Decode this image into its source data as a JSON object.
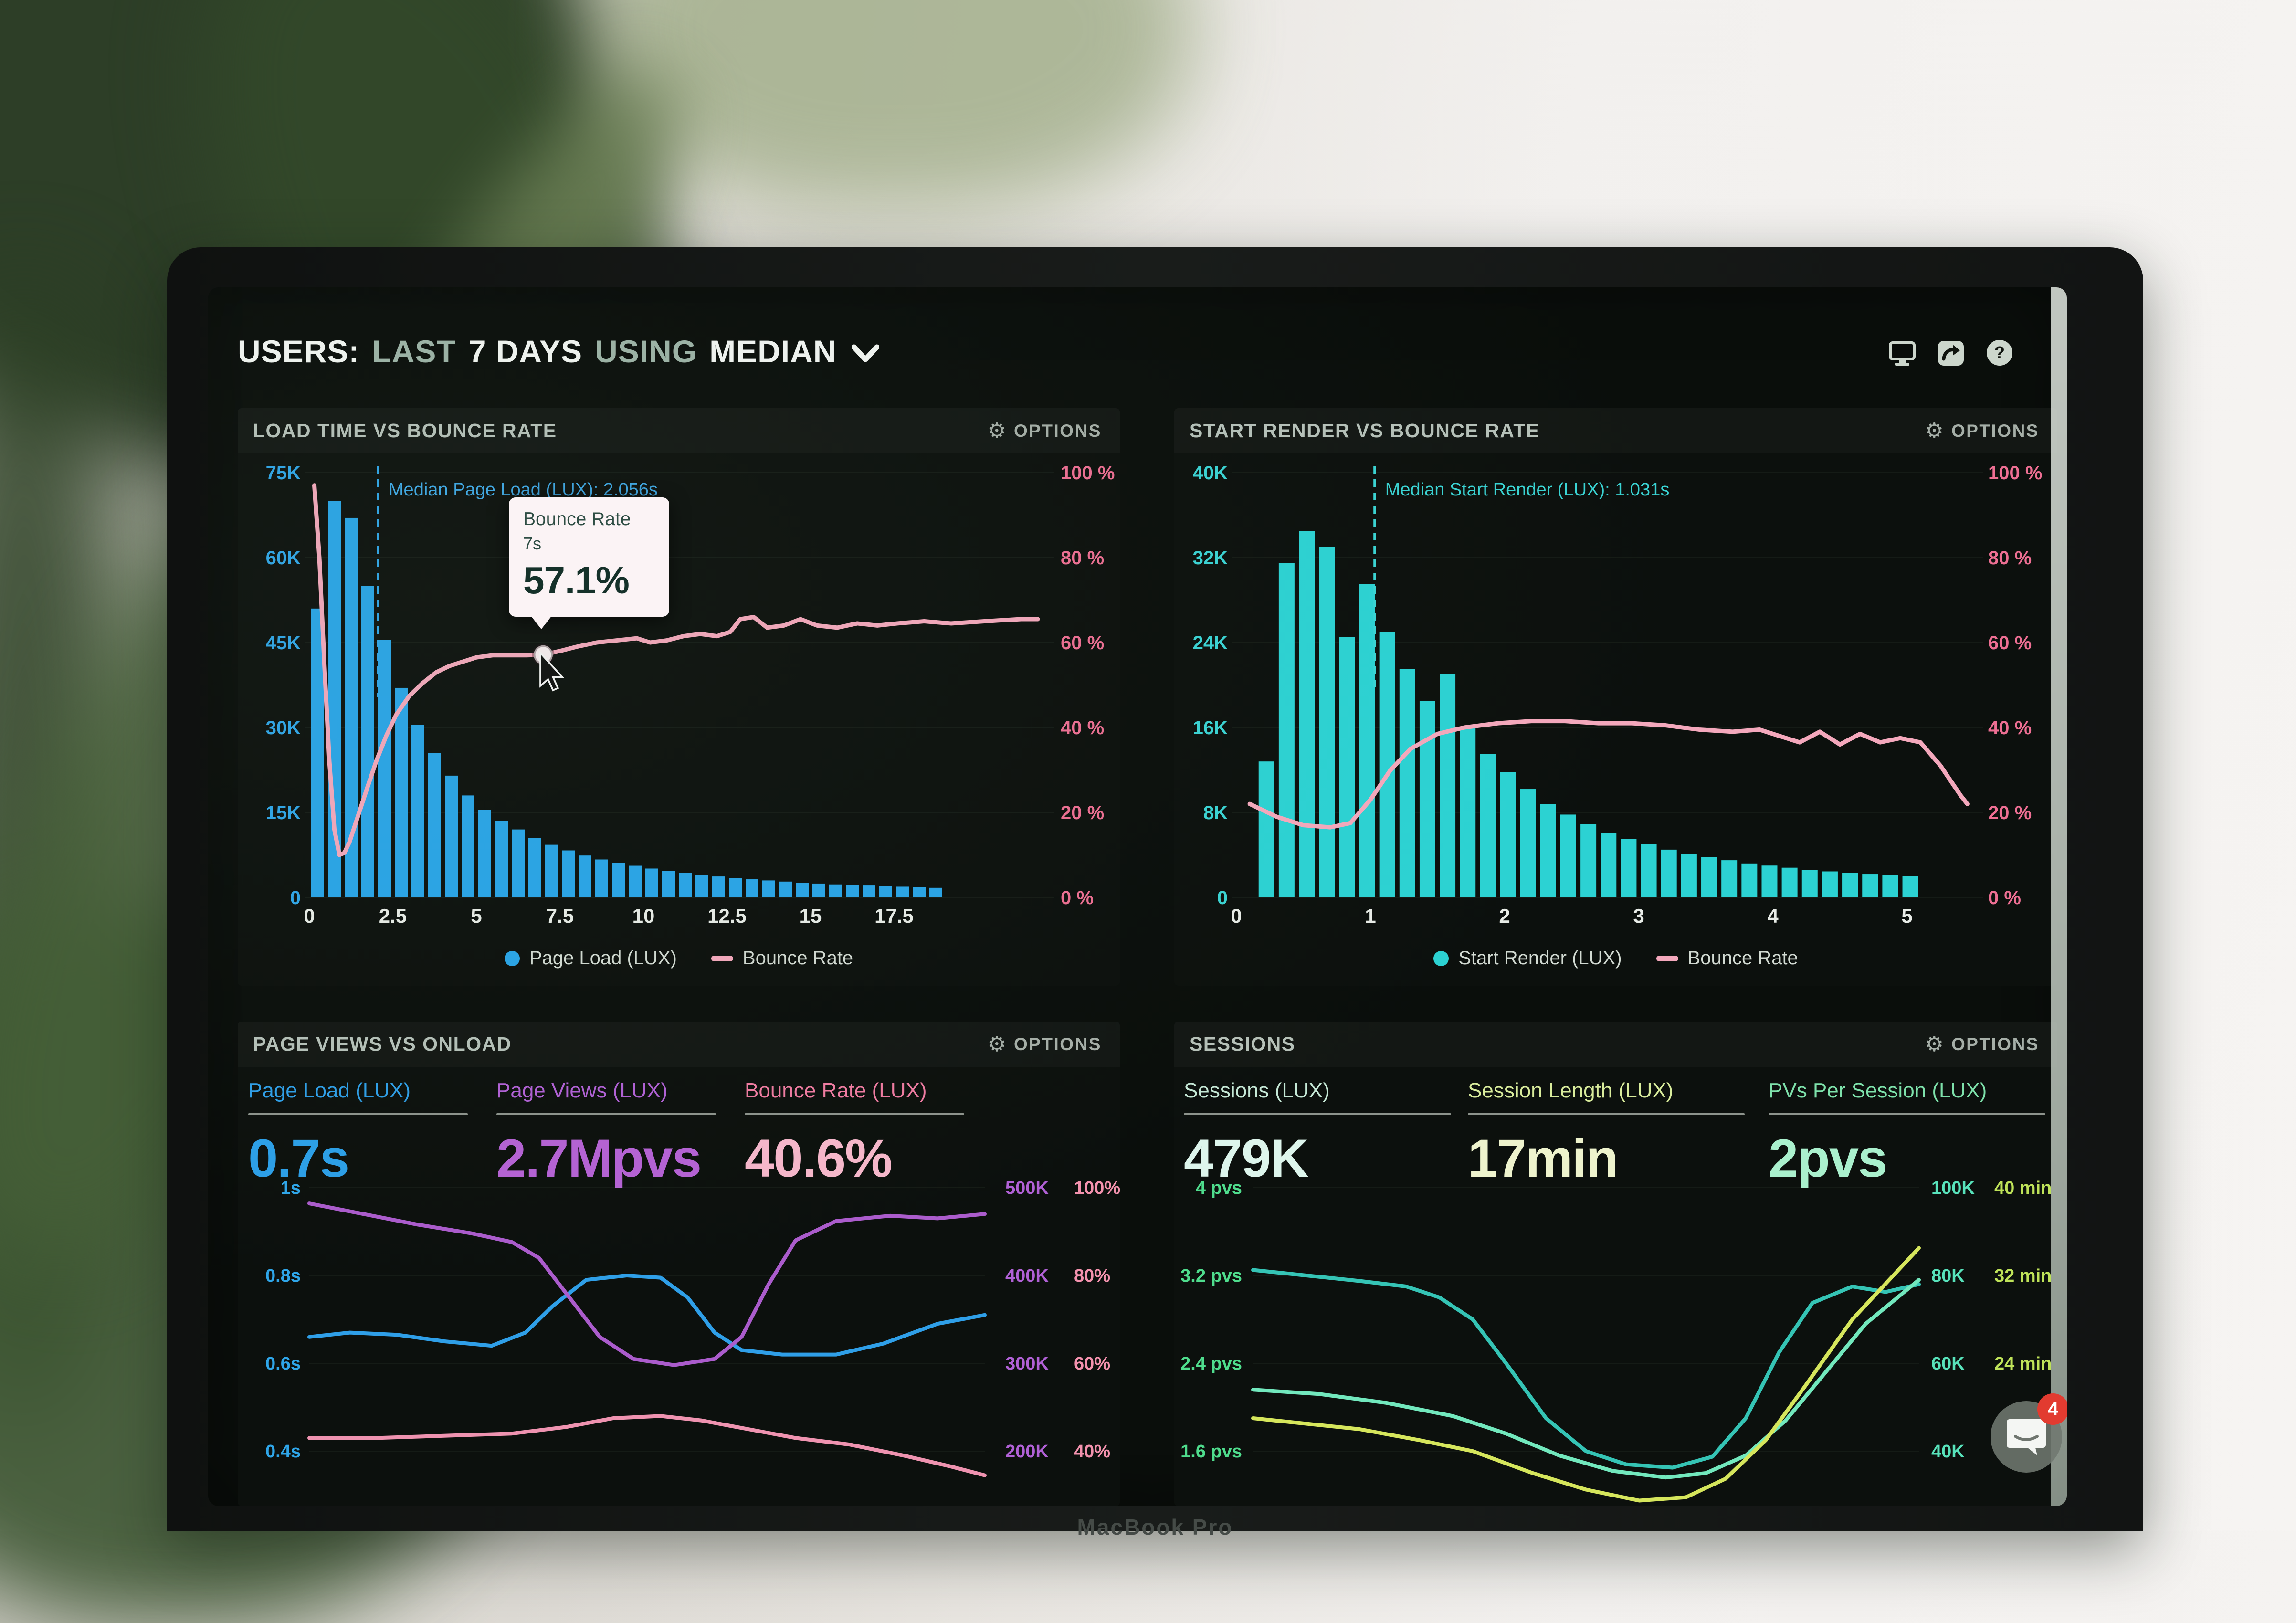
{
  "header": {
    "title_parts": [
      "USERS:",
      "LAST",
      "7 DAYS",
      "USING",
      "MEDIAN"
    ],
    "icons": [
      "display-icon",
      "share-icon",
      "help-icon"
    ]
  },
  "ui": {
    "options_label": "OPTIONS"
  },
  "panels": {
    "load_time": {
      "title": "LOAD TIME VS BOUNCE RATE"
    },
    "start_render": {
      "title": "START RENDER VS BOUNCE RATE"
    },
    "page_views": {
      "title": "PAGE VIEWS VS ONLOAD",
      "metrics": [
        {
          "label": "Page Load (LUX)",
          "value": "0.7s",
          "label_color": "#2f9fe8",
          "value_color": "#2c9fe8"
        },
        {
          "label": "Page Views (LUX)",
          "value": "2.7Mpvs",
          "label_color": "#b161d6",
          "value_color": "#b562d4"
        },
        {
          "label": "Bounce Rate (LUX)",
          "value": "40.6%",
          "label_color": "#f07ca2",
          "value_color": "#f6b7cb"
        }
      ]
    },
    "sessions": {
      "title": "SESSIONS",
      "metrics": [
        {
          "label": "Sessions (LUX)",
          "value": "479K",
          "label_color": "#c5e8d6",
          "value_color": "#ddf5ec"
        },
        {
          "label": "Session Length (LUX)",
          "value": "17min",
          "label_color": "#d9ec9c",
          "value_color": "#eef3cd"
        },
        {
          "label": "PVs Per Session (LUX)",
          "value": "2pvs",
          "label_color": "#7ee2ab",
          "value_color": "#aaf0cd"
        }
      ]
    }
  },
  "chat": {
    "badge": "4"
  },
  "device": {
    "label": "MacBook Pro"
  },
  "chart_data": [
    {
      "id": "load-time-vs-bounce-rate",
      "type": "bar+line",
      "title": "LOAD TIME VS BOUNCE RATE",
      "x_ticks": [
        0,
        2.5,
        5,
        7.5,
        10,
        12.5,
        15,
        17.5
      ],
      "x_unit": "s",
      "left_axis": {
        "tick_labels": [
          "75K",
          "60K",
          "45K",
          "30K",
          "15K",
          "0"
        ],
        "max_k": 75,
        "color": "#2fa6e9"
      },
      "right_axis": {
        "tick_labels": [
          "100 %",
          "80 %",
          "60 %",
          "40 %",
          "20 %",
          "0 %"
        ],
        "max": 100,
        "color": "#ee6f93"
      },
      "bars": {
        "name": "Page Load (LUX)",
        "color": "#29a5e8",
        "bin_start": 0.25,
        "bin_width": 0.5,
        "values_k": [
          51,
          70,
          67,
          55,
          45.5,
          37,
          30.5,
          25.5,
          21.5,
          18,
          15.5,
          13.5,
          12,
          10.5,
          9.3,
          8.3,
          7.4,
          6.7,
          6.1,
          5.6,
          5.1,
          4.7,
          4.3,
          4,
          3.7,
          3.4,
          3.2,
          3,
          2.8,
          2.6,
          2.45,
          2.3,
          2.2,
          2.1,
          2,
          1.9,
          1.8,
          1.7
        ]
      },
      "line": {
        "name": "Bounce Rate",
        "color": "#f4a8bc",
        "points_pct": [
          [
            0.15,
            97
          ],
          [
            0.3,
            80
          ],
          [
            0.45,
            55
          ],
          [
            0.6,
            32
          ],
          [
            0.75,
            16
          ],
          [
            0.9,
            10
          ],
          [
            1.05,
            10.5
          ],
          [
            1.2,
            13
          ],
          [
            1.45,
            19
          ],
          [
            1.7,
            25
          ],
          [
            2.0,
            32
          ],
          [
            2.3,
            38
          ],
          [
            2.6,
            43
          ],
          [
            3.0,
            47.5
          ],
          [
            3.4,
            50.5
          ],
          [
            3.8,
            53
          ],
          [
            4.2,
            54.5
          ],
          [
            4.6,
            55.5
          ],
          [
            5.0,
            56.5
          ],
          [
            5.5,
            57
          ],
          [
            6.0,
            57
          ],
          [
            6.5,
            57
          ],
          [
            7.0,
            57.1
          ],
          [
            7.5,
            58
          ],
          [
            8.0,
            59
          ],
          [
            8.6,
            60
          ],
          [
            9.2,
            60.5
          ],
          [
            9.8,
            61
          ],
          [
            10.2,
            60
          ],
          [
            10.7,
            60.5
          ],
          [
            11.2,
            61.5
          ],
          [
            11.7,
            62
          ],
          [
            12.2,
            61.5
          ],
          [
            12.6,
            62.5
          ],
          [
            12.9,
            65.5
          ],
          [
            13.3,
            66
          ],
          [
            13.7,
            63.5
          ],
          [
            14.2,
            64
          ],
          [
            14.7,
            65.5
          ],
          [
            15.2,
            64
          ],
          [
            15.8,
            63.5
          ],
          [
            16.4,
            64.5
          ],
          [
            17.0,
            64
          ],
          [
            17.6,
            64.5
          ],
          [
            18.4,
            65
          ],
          [
            19.2,
            64.5
          ],
          [
            20.2,
            65
          ],
          [
            21.3,
            65.5
          ],
          [
            21.8,
            65.5
          ]
        ]
      },
      "median": {
        "label": "Median Page Load (LUX): 2.056s",
        "value": 2.056
      },
      "tooltip": {
        "series": "Bounce Rate",
        "x_label": "7s",
        "value_label": "57.1%",
        "at": [
          7,
          57.1
        ]
      },
      "legend": [
        {
          "swatch": "dot",
          "color": "#29a5e8",
          "label": "Page Load (LUX)"
        },
        {
          "swatch": "dash",
          "color": "#f4a8bc",
          "label": "Bounce Rate"
        }
      ]
    },
    {
      "id": "start-render-vs-bounce-rate",
      "type": "bar+line",
      "title": "START RENDER VS BOUNCE RATE",
      "x_ticks": [
        0,
        1,
        2,
        3,
        4,
        5
      ],
      "x_unit": "s",
      "left_axis": {
        "tick_labels": [
          "40K",
          "32K",
          "24K",
          "16K",
          "8K",
          "0"
        ],
        "max_k": 40,
        "color": "#3ad4d4"
      },
      "right_axis": {
        "tick_labels": [
          "100 %",
          "80 %",
          "60 %",
          "40 %",
          "20 %",
          "0 %"
        ],
        "max": 100,
        "color": "#ee6f93"
      },
      "bars": {
        "name": "Start Render (LUX)",
        "color": "#2cd2d3",
        "bin_start": 0.225,
        "bin_width": 0.15,
        "values_k": [
          12.8,
          31.5,
          34.5,
          33,
          24.5,
          29.5,
          25,
          21.5,
          18.5,
          21,
          16,
          13.5,
          11.8,
          10.2,
          8.8,
          7.8,
          6.9,
          6.1,
          5.5,
          5.0,
          4.5,
          4.1,
          3.8,
          3.5,
          3.2,
          3.0,
          2.8,
          2.6,
          2.45,
          2.3,
          2.2,
          2.1,
          2.0
        ]
      },
      "line": {
        "name": "Bounce Rate",
        "color": "#f4a8bc",
        "points_pct": [
          [
            0.1,
            22
          ],
          [
            0.3,
            19
          ],
          [
            0.5,
            17
          ],
          [
            0.7,
            16.5
          ],
          [
            0.85,
            17.5
          ],
          [
            1.0,
            23
          ],
          [
            1.15,
            30
          ],
          [
            1.3,
            35
          ],
          [
            1.5,
            38.5
          ],
          [
            1.7,
            40
          ],
          [
            1.95,
            41
          ],
          [
            2.2,
            41.5
          ],
          [
            2.45,
            41.5
          ],
          [
            2.7,
            41
          ],
          [
            2.95,
            41
          ],
          [
            3.2,
            40.5
          ],
          [
            3.45,
            39.5
          ],
          [
            3.7,
            39
          ],
          [
            3.9,
            39.5
          ],
          [
            4.05,
            38
          ],
          [
            4.2,
            36.5
          ],
          [
            4.35,
            39
          ],
          [
            4.5,
            36
          ],
          [
            4.65,
            38.5
          ],
          [
            4.8,
            36.5
          ],
          [
            4.95,
            37.5
          ],
          [
            5.1,
            36.5
          ],
          [
            5.25,
            31
          ],
          [
            5.4,
            24
          ],
          [
            5.45,
            22
          ]
        ]
      },
      "median": {
        "label": "Median Start Render (LUX): 1.031s",
        "value": 1.031
      },
      "legend": [
        {
          "swatch": "dot",
          "color": "#2cd2d3",
          "label": "Start Render (LUX)"
        },
        {
          "swatch": "dash",
          "color": "#f4a8bc",
          "label": "Bounce Rate"
        }
      ]
    },
    {
      "id": "page-views-vs-onload",
      "type": "line",
      "title": "PAGE VIEWS VS ONLOAD",
      "left_axis": {
        "tick_labels": [
          "1s",
          "0.8s",
          "0.6s",
          "0.4s"
        ],
        "top": 1,
        "step": 0.2,
        "color": "#2fa6e9"
      },
      "right_axis_cols": [
        {
          "tick_labels": [
            "500K",
            "400K",
            "300K",
            "200K"
          ],
          "top": 500,
          "step": 100,
          "color": "#b161d6"
        },
        {
          "tick_labels": [
            "100%",
            "80%",
            "60%",
            "40%"
          ],
          "top": 100,
          "step": 20,
          "color": "#f492ae"
        }
      ],
      "series": [
        {
          "name": "Page Load (LUX)",
          "axis": "left",
          "color": "#2f9fe8",
          "points": [
            [
              0,
              0.66
            ],
            [
              0.06,
              0.67
            ],
            [
              0.13,
              0.665
            ],
            [
              0.2,
              0.65
            ],
            [
              0.27,
              0.64
            ],
            [
              0.32,
              0.67
            ],
            [
              0.36,
              0.73
            ],
            [
              0.41,
              0.79
            ],
            [
              0.47,
              0.8
            ],
            [
              0.52,
              0.795
            ],
            [
              0.56,
              0.75
            ],
            [
              0.6,
              0.67
            ],
            [
              0.64,
              0.63
            ],
            [
              0.7,
              0.62
            ],
            [
              0.78,
              0.62
            ],
            [
              0.85,
              0.645
            ],
            [
              0.93,
              0.69
            ],
            [
              1,
              0.71
            ]
          ]
        },
        {
          "name": "Page Views (LUX)",
          "axis": "right0",
          "color": "#ab5ccc",
          "points": [
            [
              0,
              482
            ],
            [
              0.08,
              470
            ],
            [
              0.16,
              458
            ],
            [
              0.24,
              448
            ],
            [
              0.3,
              438
            ],
            [
              0.34,
              420
            ],
            [
              0.38,
              380
            ],
            [
              0.43,
              330
            ],
            [
              0.48,
              305
            ],
            [
              0.54,
              298
            ],
            [
              0.6,
              305
            ],
            [
              0.64,
              330
            ],
            [
              0.68,
              390
            ],
            [
              0.72,
              440
            ],
            [
              0.78,
              462
            ],
            [
              0.86,
              468
            ],
            [
              0.93,
              465
            ],
            [
              1,
              470
            ]
          ]
        },
        {
          "name": "Bounce Rate (LUX)",
          "axis": "right1",
          "color": "#ef93b0",
          "points": [
            [
              0,
              43
            ],
            [
              0.1,
              43
            ],
            [
              0.2,
              43.5
            ],
            [
              0.3,
              44
            ],
            [
              0.38,
              45.5
            ],
            [
              0.45,
              47.5
            ],
            [
              0.52,
              48
            ],
            [
              0.58,
              47
            ],
            [
              0.65,
              45
            ],
            [
              0.72,
              43
            ],
            [
              0.8,
              41.5
            ],
            [
              0.88,
              39
            ],
            [
              0.95,
              36.5
            ],
            [
              1,
              34.5
            ]
          ]
        }
      ]
    },
    {
      "id": "sessions",
      "type": "line",
      "title": "SESSIONS",
      "left_axis": {
        "tick_labels": [
          "4 pvs",
          "3.2 pvs",
          "2.4 pvs",
          "1.6 pvs"
        ],
        "top": 4,
        "step": 0.8,
        "color": "#4fdd8d"
      },
      "right_axis_cols": [
        {
          "tick_labels": [
            "100K",
            "80K",
            "60K",
            "40K"
          ],
          "top": 100,
          "step": 20,
          "color": "#58e3bb"
        },
        {
          "tick_labels": [
            "40 min",
            "32 min",
            "24 min",
            ""
          ],
          "top": 40,
          "step": 8,
          "color": "#bfe359"
        }
      ],
      "series": [
        {
          "name": "PVs Per Session (LUX)",
          "axis": "left",
          "color": "#35c4b5",
          "points": [
            [
              0,
              3.25
            ],
            [
              0.08,
              3.2
            ],
            [
              0.16,
              3.15
            ],
            [
              0.23,
              3.1
            ],
            [
              0.28,
              3.0
            ],
            [
              0.33,
              2.8
            ],
            [
              0.38,
              2.4
            ],
            [
              0.44,
              1.9
            ],
            [
              0.5,
              1.6
            ],
            [
              0.56,
              1.48
            ],
            [
              0.63,
              1.45
            ],
            [
              0.69,
              1.55
            ],
            [
              0.74,
              1.9
            ],
            [
              0.79,
              2.5
            ],
            [
              0.84,
              2.95
            ],
            [
              0.9,
              3.1
            ],
            [
              0.95,
              3.05
            ],
            [
              1,
              3.12
            ]
          ]
        },
        {
          "name": "Sessions (LUX)",
          "axis": "right0",
          "color": "#72e8bd",
          "points": [
            [
              0,
              54
            ],
            [
              0.1,
              53
            ],
            [
              0.2,
              51
            ],
            [
              0.3,
              48
            ],
            [
              0.38,
              44
            ],
            [
              0.46,
              39
            ],
            [
              0.54,
              35.5
            ],
            [
              0.62,
              34
            ],
            [
              0.68,
              35
            ],
            [
              0.74,
              39
            ],
            [
              0.8,
              47
            ],
            [
              0.86,
              58
            ],
            [
              0.92,
              69
            ],
            [
              1,
              79
            ]
          ]
        },
        {
          "name": "Session Length (LUX)",
          "axis": "right1",
          "color": "#d6e65c",
          "points": [
            [
              0,
              19
            ],
            [
              0.08,
              18.5
            ],
            [
              0.16,
              18
            ],
            [
              0.25,
              17
            ],
            [
              0.33,
              16
            ],
            [
              0.42,
              14
            ],
            [
              0.5,
              12.5
            ],
            [
              0.58,
              11.5
            ],
            [
              0.65,
              11.8
            ],
            [
              0.71,
              13.5
            ],
            [
              0.77,
              17
            ],
            [
              0.83,
              22
            ],
            [
              0.9,
              28
            ],
            [
              1,
              34.5
            ]
          ]
        }
      ]
    }
  ]
}
